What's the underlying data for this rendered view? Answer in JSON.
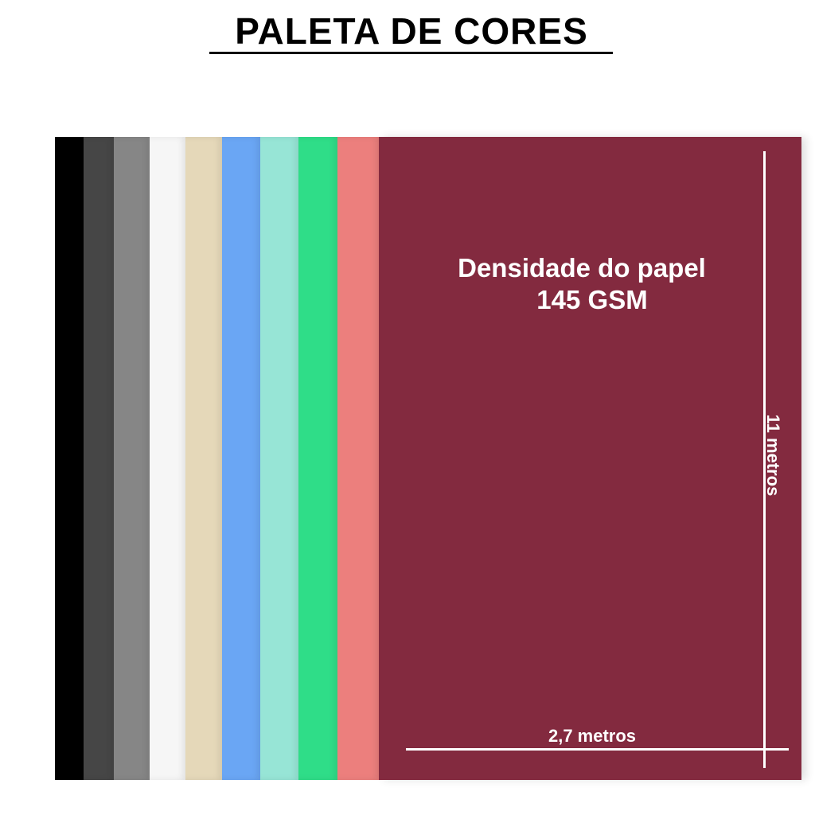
{
  "title": "PALETA DE CORES",
  "colors": [
    "#000000",
    "#464646",
    "#868686",
    "#f6f6f6",
    "#e5d8b9",
    "#6aa6f4",
    "#97e5d6",
    "#2fdd88",
    "#ec7f7d",
    "#832a3f"
  ],
  "density_label": "Densidade do papel",
  "density_value": "145 GSM",
  "width_label": "2,7 metros",
  "length_label": "11 metros"
}
